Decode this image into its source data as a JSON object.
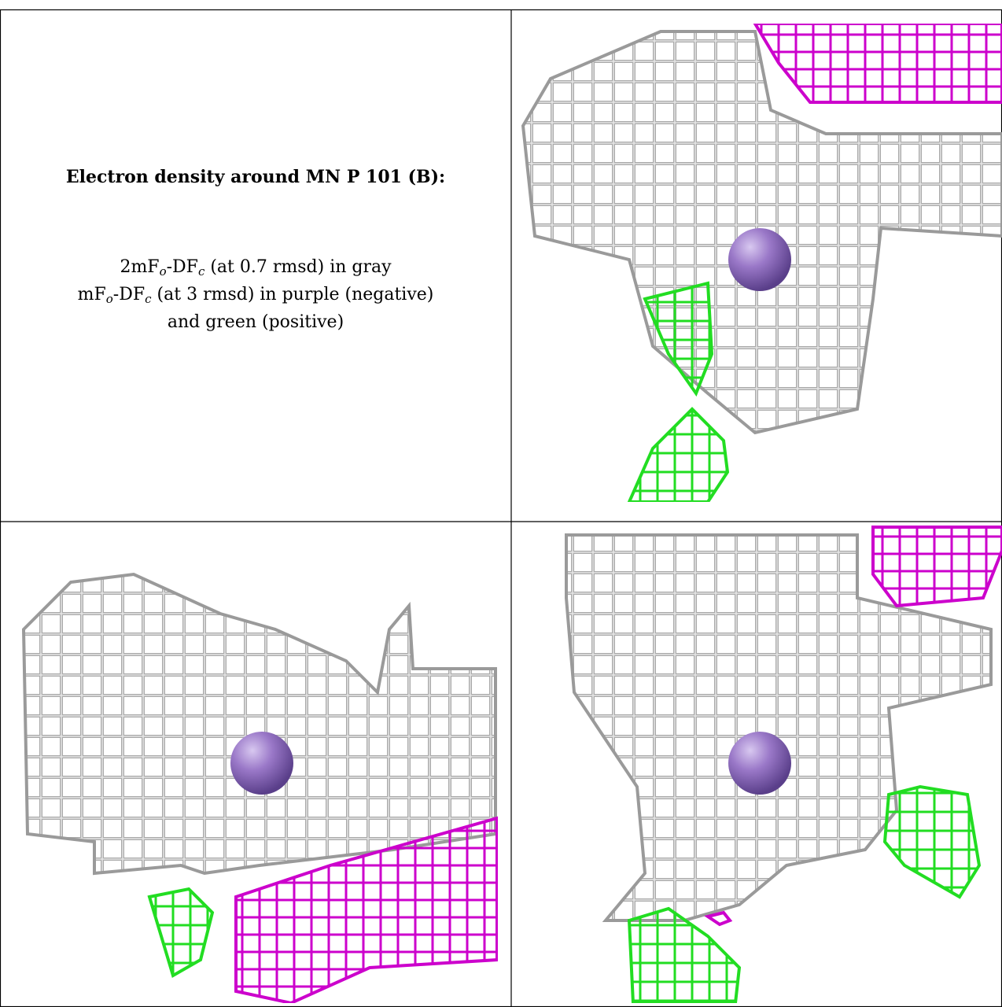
{
  "caption": {
    "title": "Electron density around MN P 101 (B):",
    "lines": [
      [
        "2mF",
        "o",
        "-DF",
        "c",
        " (at 0.7 rmsd) in gray"
      ],
      [
        "mF",
        "o",
        "-DF",
        "c",
        " (at 3 rmsd) in purple (negative)"
      ],
      [
        "and green (positive)"
      ]
    ]
  }
}
